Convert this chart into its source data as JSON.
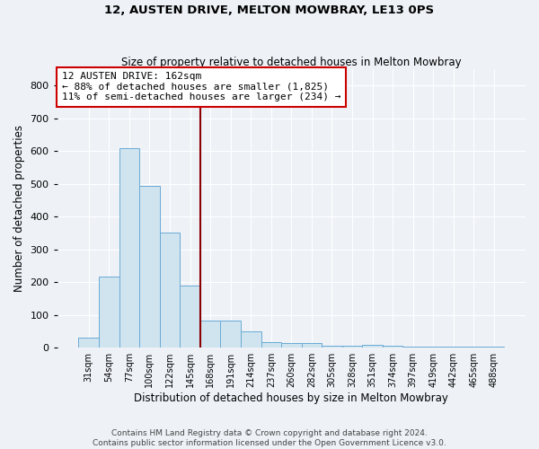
{
  "title1": "12, AUSTEN DRIVE, MELTON MOWBRAY, LE13 0PS",
  "title2": "Size of property relative to detached houses in Melton Mowbray",
  "xlabel": "Distribution of detached houses by size in Melton Mowbray",
  "ylabel": "Number of detached properties",
  "categories": [
    "31sqm",
    "54sqm",
    "77sqm",
    "100sqm",
    "122sqm",
    "145sqm",
    "168sqm",
    "191sqm",
    "214sqm",
    "237sqm",
    "260sqm",
    "282sqm",
    "305sqm",
    "328sqm",
    "351sqm",
    "374sqm",
    "397sqm",
    "419sqm",
    "442sqm",
    "465sqm",
    "488sqm"
  ],
  "values": [
    30,
    218,
    610,
    495,
    352,
    190,
    83,
    83,
    50,
    18,
    13,
    13,
    7,
    5,
    8,
    5,
    4,
    2,
    2,
    2,
    2
  ],
  "bar_color": "#d0e4f0",
  "bar_edgecolor": "#6aaad4",
  "ref_line_x": 6.0,
  "annotation_line1": "12 AUSTEN DRIVE: 162sqm",
  "annotation_line2": "← 88% of detached houses are smaller (1,825)",
  "annotation_line3": "11% of semi-detached houses are larger (234) →",
  "ylim": [
    0,
    850
  ],
  "yticks": [
    0,
    100,
    200,
    300,
    400,
    500,
    600,
    700,
    800
  ],
  "footer1": "Contains HM Land Registry data © Crown copyright and database right 2024.",
  "footer2": "Contains public sector information licensed under the Open Government Licence v3.0.",
  "bg_color": "#eef2f7",
  "plot_bg_color": "#eef2f7",
  "grid_color": "#ffffff",
  "title1_fontsize": 9.5,
  "title2_fontsize": 8.5
}
